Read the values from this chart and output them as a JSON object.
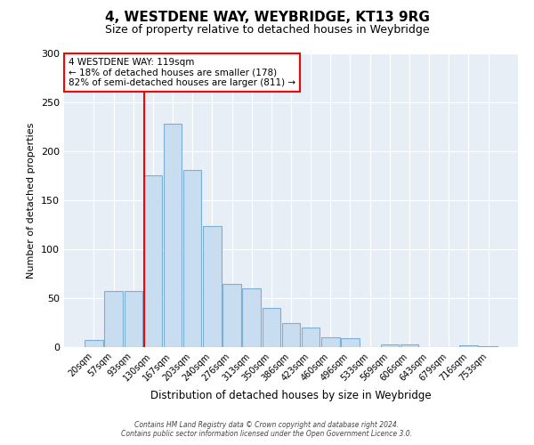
{
  "title": "4, WESTDENE WAY, WEYBRIDGE, KT13 9RG",
  "subtitle": "Size of property relative to detached houses in Weybridge",
  "xlabel": "Distribution of detached houses by size in Weybridge",
  "ylabel": "Number of detached properties",
  "bar_labels": [
    "20sqm",
    "57sqm",
    "93sqm",
    "130sqm",
    "167sqm",
    "203sqm",
    "240sqm",
    "276sqm",
    "313sqm",
    "350sqm",
    "386sqm",
    "423sqm",
    "460sqm",
    "496sqm",
    "533sqm",
    "569sqm",
    "606sqm",
    "643sqm",
    "679sqm",
    "716sqm",
    "753sqm"
  ],
  "bar_values": [
    7,
    57,
    57,
    175,
    228,
    181,
    124,
    65,
    60,
    40,
    25,
    20,
    10,
    9,
    0,
    3,
    3,
    0,
    0,
    2,
    1
  ],
  "bar_color": "#c8ddf0",
  "bar_edge_color": "#7bafd4",
  "vline_color": "red",
  "annotation_title": "4 WESTDENE WAY: 119sqm",
  "annotation_line1": "← 18% of detached houses are smaller (178)",
  "annotation_line2": "82% of semi-detached houses are larger (811) →",
  "annotation_box_facecolor": "white",
  "annotation_box_edgecolor": "red",
  "ylim": [
    0,
    300
  ],
  "yticks": [
    0,
    50,
    100,
    150,
    200,
    250,
    300
  ],
  "footer1": "Contains HM Land Registry data © Crown copyright and database right 2024.",
  "footer2": "Contains public sector information licensed under the Open Government Licence 3.0.",
  "fig_facecolor": "#ffffff",
  "plot_facecolor": "#e8eef6",
  "grid_color": "#ffffff",
  "title_fontsize": 11,
  "subtitle_fontsize": 9
}
